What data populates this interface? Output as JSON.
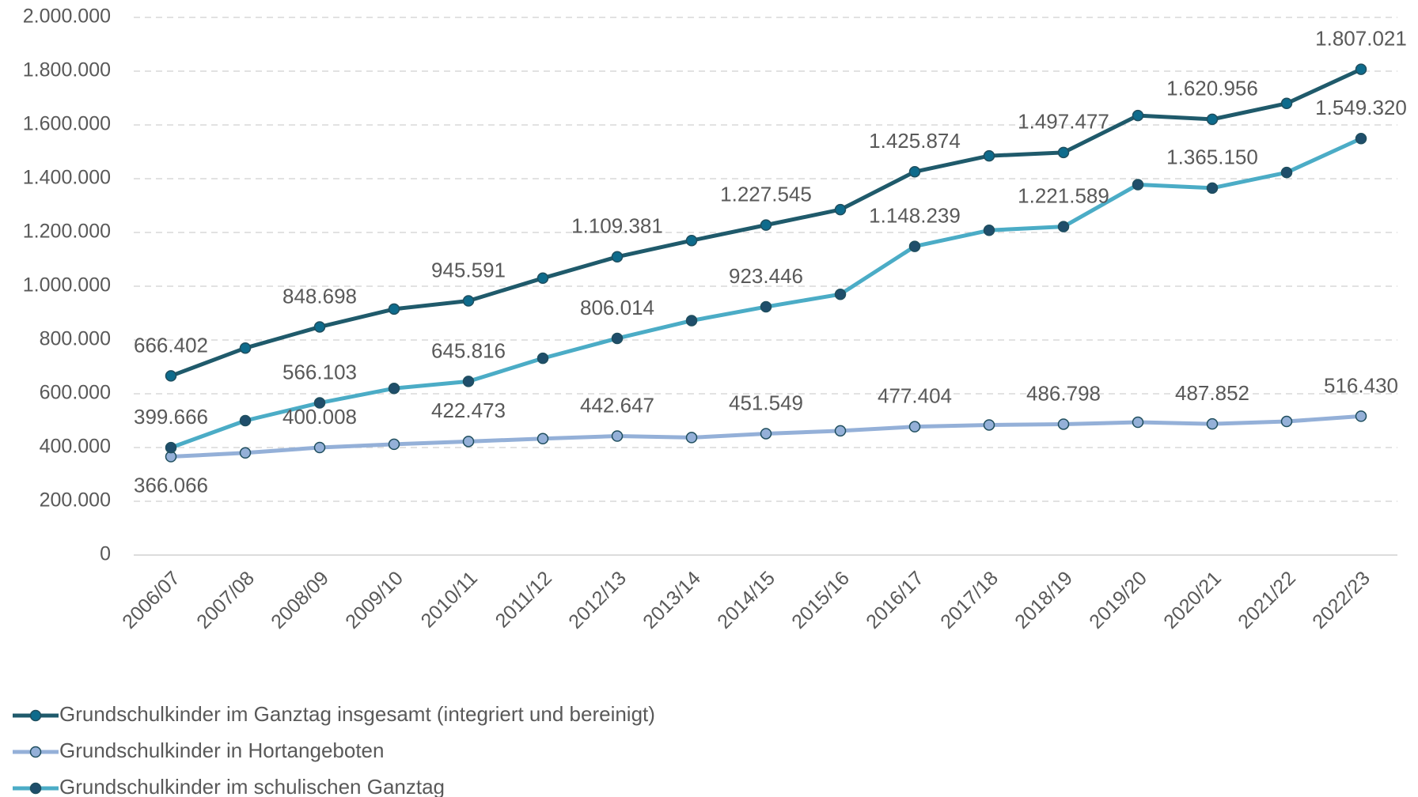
{
  "chart_data": {
    "type": "line",
    "categories": [
      "2006/07",
      "2007/08",
      "2008/09",
      "2009/10",
      "2010/11",
      "2011/12",
      "2012/13",
      "2013/14",
      "2014/15",
      "2015/16",
      "2016/17",
      "2017/18",
      "2018/19",
      "2019/20",
      "2020/21",
      "2021/22",
      "2022/23"
    ],
    "ylim": [
      0,
      2000000
    ],
    "yticks": [
      0,
      {
        "value": 200000,
        "label": "200.000"
      },
      {
        "value": 400000,
        "label": "400.000"
      },
      {
        "value": 600000,
        "label": "600.000"
      },
      {
        "value": 800000,
        "label": "800.000"
      },
      {
        "value": 1000000,
        "label": "1.000.000"
      },
      {
        "value": 1200000,
        "label": "1.200.000"
      },
      {
        "value": 1400000,
        "label": "1.400.000"
      },
      {
        "value": 1600000,
        "label": "1.600.000"
      },
      {
        "value": 1800000,
        "label": "1.800.000"
      },
      {
        "value": 2000000,
        "label": "2.000.000"
      }
    ],
    "grid": true,
    "legend": "bottom-left",
    "series": [
      {
        "name": "Grundschulkinder im Ganztag insgesamt (integriert und bereinigt)",
        "color": "#1f5a6b",
        "marker_color": "#0e6b8c",
        "values": [
          666402,
          770000,
          848698,
          915000,
          945591,
          1030000,
          1109381,
          1170000,
          1227545,
          1285000,
          1425874,
          1485000,
          1497477,
          1635000,
          1620956,
          1680000,
          1807021
        ],
        "value_labels": [
          "666.402",
          null,
          "848.698",
          null,
          "945.591",
          null,
          "1.109.381",
          null,
          "1.227.545",
          null,
          "1.425.874",
          null,
          "1.497.477",
          null,
          "1.620.956",
          null,
          "1.807.021"
        ]
      },
      {
        "name": "Grundschulkinder in Hortangeboten",
        "color": "#94b0d8",
        "marker_color": "#94b0d8",
        "values": [
          366066,
          380000,
          400008,
          412000,
          422473,
          433000,
          442647,
          437000,
          451549,
          462000,
          477404,
          484000,
          486798,
          494000,
          487852,
          497000,
          516430
        ],
        "value_labels": [
          "366.066",
          null,
          "400.008",
          null,
          "422.473",
          null,
          "442.647",
          null,
          "451.549",
          null,
          "477.404",
          null,
          "486.798",
          null,
          "487.852",
          null,
          "516.430"
        ]
      },
      {
        "name": "Grundschulkinder im schulischen Ganztag",
        "color": "#4bacc6",
        "marker_color": "#1f4e6b",
        "values": [
          399666,
          500000,
          566103,
          620000,
          645816,
          732000,
          806014,
          872000,
          923446,
          970000,
          1148239,
          1208000,
          1221589,
          1378000,
          1365150,
          1423000,
          1549320
        ],
        "value_labels": [
          "399.666",
          null,
          "566.103",
          null,
          "645.816",
          null,
          "806.014",
          null,
          "923.446",
          null,
          "1.148.239",
          null,
          "1.221.589",
          null,
          "1.365.150",
          null,
          "1.549.320"
        ]
      }
    ]
  }
}
